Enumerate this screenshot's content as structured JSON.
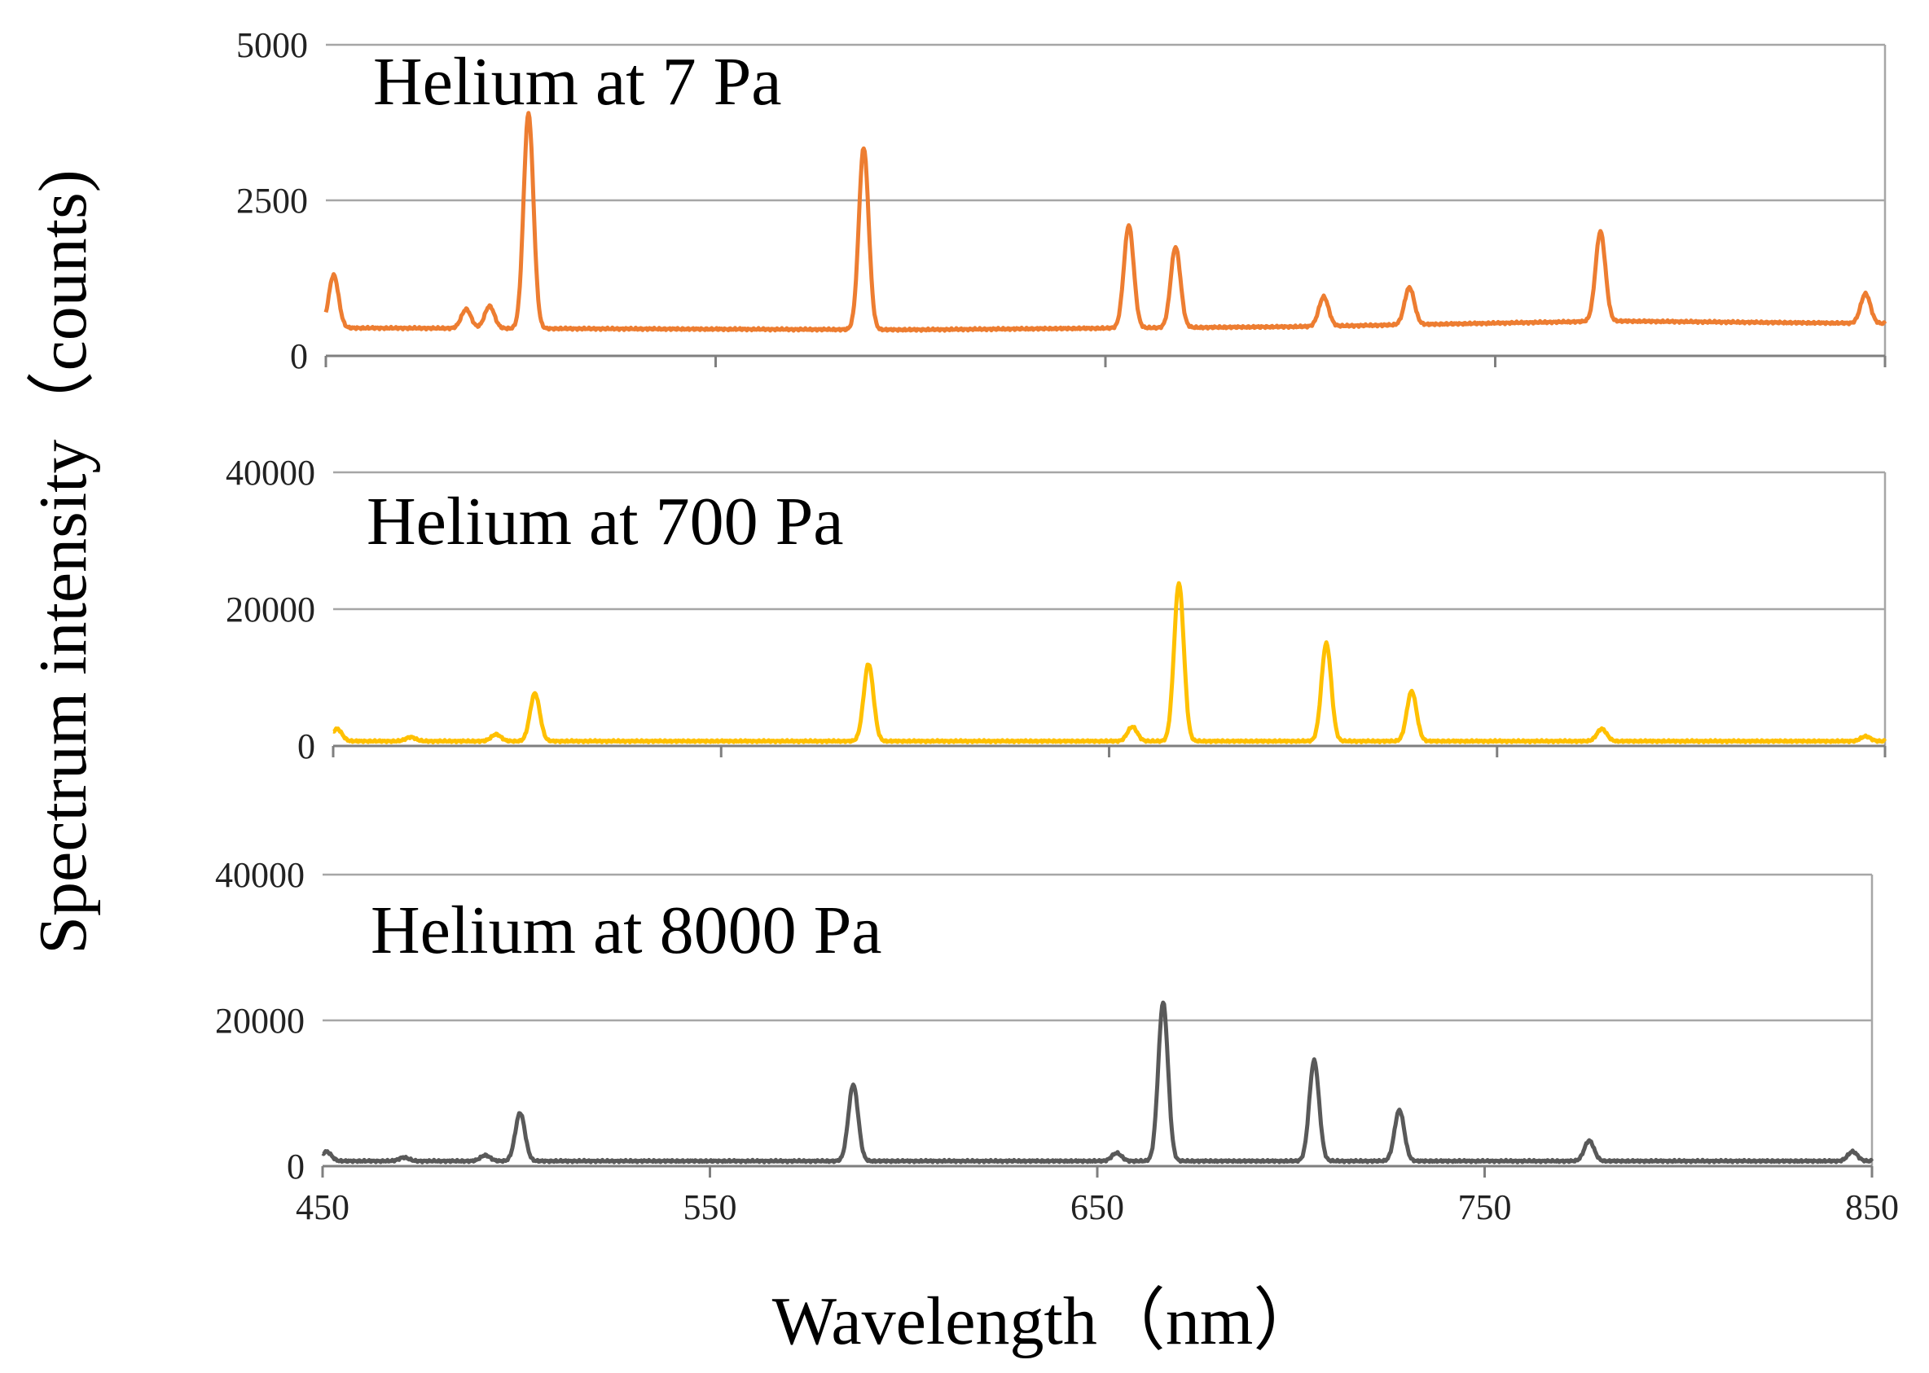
{
  "figure": {
    "y_axis_label": "Spectrum intensity（counts)",
    "x_axis_label": "Wavelength（nm）"
  },
  "chart_data": [
    {
      "type": "line",
      "title": "Helium at 7 Pa",
      "xlabel": "Wavelength（nm）",
      "ylabel": "Spectrum intensity（counts)",
      "xlim": [
        450,
        850
      ],
      "ylim": [
        0,
        5000
      ],
      "yticks": [
        0,
        2500,
        5000
      ],
      "xticks": [
        450,
        550,
        650,
        750,
        850
      ],
      "grid": true,
      "color": "#ed7d31",
      "series": [
        {
          "name": "Helium at 7 Pa",
          "baseline": [
            [
              450,
              450
            ],
            [
              600,
              420
            ],
            [
              700,
              470
            ],
            [
              780,
              560
            ],
            [
              850,
              520
            ]
          ],
          "peaks": [
            [
              452,
              1300
            ],
            [
              486,
              750
            ],
            [
              492,
              800
            ],
            [
              502,
              3900
            ],
            [
              588,
              3350
            ],
            [
              656,
              2100
            ],
            [
              668,
              1750
            ],
            [
              706,
              950
            ],
            [
              728,
              1100
            ],
            [
              777,
              2000
            ],
            [
              845,
              1000
            ]
          ]
        }
      ]
    },
    {
      "type": "line",
      "title": "Helium at 700 Pa",
      "xlabel": "Wavelength（nm）",
      "ylabel": "Spectrum intensity（counts)",
      "xlim": [
        450,
        850
      ],
      "ylim": [
        0,
        40000
      ],
      "yticks": [
        0,
        20000,
        40000
      ],
      "xticks": [
        450,
        550,
        650,
        750,
        850
      ],
      "grid": true,
      "color": "#ffc000",
      "series": [
        {
          "name": "Helium at 700 Pa",
          "baseline": [
            [
              450,
              700
            ],
            [
              850,
              700
            ]
          ],
          "peaks": [
            [
              451,
              2500
            ],
            [
              470,
              1300
            ],
            [
              492,
              1700
            ],
            [
              502,
              7700
            ],
            [
              588,
              12000
            ],
            [
              656,
              2800
            ],
            [
              668,
              23800
            ],
            [
              706,
              15000
            ],
            [
              728,
              8000
            ],
            [
              777,
              2500
            ],
            [
              845,
              1400
            ]
          ]
        }
      ]
    },
    {
      "type": "line",
      "title": "Helium at 8000 Pa",
      "xlabel": "Wavelength（nm）",
      "ylabel": "Spectrum intensity（counts)",
      "xlim": [
        450,
        850
      ],
      "ylim": [
        0,
        40000
      ],
      "yticks": [
        0,
        20000,
        40000
      ],
      "xticks": [
        450,
        550,
        650,
        750,
        850
      ],
      "grid": true,
      "color": "#595959",
      "series": [
        {
          "name": "Helium at 8000 Pa",
          "baseline": [
            [
              450,
              700
            ],
            [
              850,
              700
            ]
          ],
          "peaks": [
            [
              451,
              2000
            ],
            [
              471,
              1200
            ],
            [
              492,
              1500
            ],
            [
              501,
              7300
            ],
            [
              587,
              11200
            ],
            [
              655,
              1800
            ],
            [
              667,
              22500
            ],
            [
              706,
              14500
            ],
            [
              728,
              7700
            ],
            [
              777,
              3500
            ],
            [
              845,
              2000
            ]
          ]
        }
      ]
    }
  ]
}
